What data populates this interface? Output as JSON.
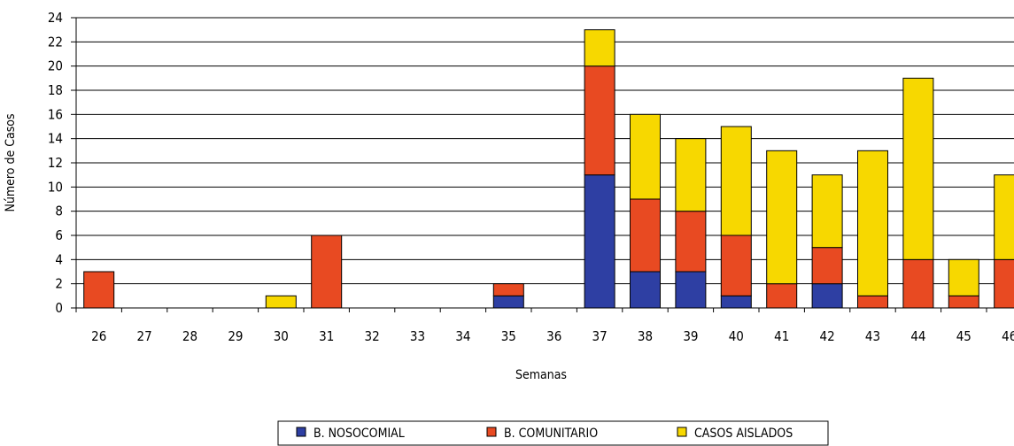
{
  "chart_data": {
    "type": "bar",
    "stacked": true,
    "title": "",
    "xlabel": "Semanas",
    "ylabel": "Número de Casos",
    "ylim": [
      0,
      24
    ],
    "yticks": [
      0,
      2,
      4,
      6,
      8,
      10,
      12,
      14,
      16,
      18,
      20,
      22,
      24
    ],
    "grid": "horizontal",
    "legend_position": "bottom",
    "categories": [
      "26",
      "27",
      "28",
      "29",
      "30",
      "31",
      "32",
      "33",
      "34",
      "35",
      "36",
      "37",
      "38",
      "39",
      "40",
      "41",
      "42",
      "43",
      "44",
      "45",
      "46"
    ],
    "series": [
      {
        "name": "B. NOSOCOMIAL",
        "color": "#2E3FA3",
        "values": [
          0,
          0,
          0,
          0,
          0,
          0,
          0,
          0,
          0,
          1,
          0,
          11,
          3,
          3,
          1,
          0,
          2,
          0,
          0,
          0,
          0
        ]
      },
      {
        "name": "B. COMUNITARIO",
        "color": "#E84A22",
        "values": [
          3,
          0,
          0,
          0,
          0,
          6,
          0,
          0,
          0,
          1,
          0,
          9,
          6,
          5,
          5,
          2,
          3,
          1,
          4,
          1,
          4
        ]
      },
      {
        "name": "CASOS AISLADOS",
        "color": "#F7D800",
        "values": [
          0,
          0,
          0,
          0,
          1,
          0,
          0,
          0,
          0,
          0,
          0,
          3,
          7,
          6,
          9,
          11,
          6,
          12,
          15,
          3,
          7
        ]
      }
    ]
  }
}
